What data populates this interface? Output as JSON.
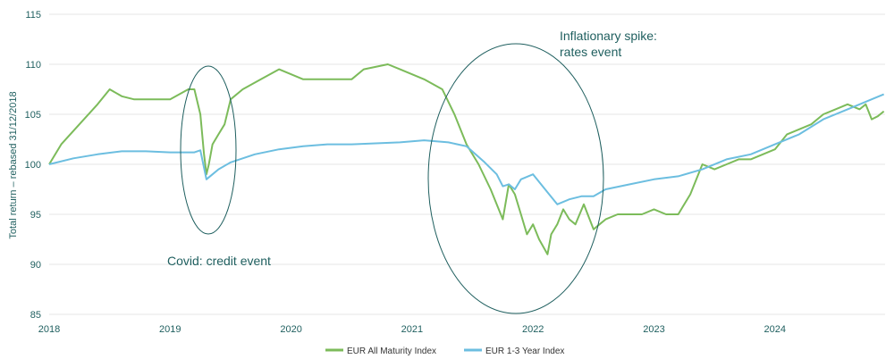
{
  "chart_data": {
    "type": "line",
    "title": "",
    "ylabel": "Total return – rebased 31/12/2018",
    "xlabel": "",
    "ylim": [
      85,
      115
    ],
    "y_ticks": [
      "85",
      "90",
      "95",
      "100",
      "105",
      "110",
      "115"
    ],
    "x_ticks": [
      "2018",
      "2019",
      "2020",
      "2021",
      "2022",
      "2023",
      "2024"
    ],
    "grid": "horizontal",
    "legend": "bottom",
    "annotations": [
      {
        "text_lines": [
          "Covid: credit event"
        ]
      },
      {
        "text_lines": [
          "Inflationary spike:",
          "rates event"
        ]
      }
    ],
    "series": [
      {
        "name": "EUR All Maturity Index",
        "color": "#7cbb5a",
        "x": [
          2018.0,
          2018.1,
          2018.25,
          2018.4,
          2018.5,
          2018.6,
          2018.7,
          2018.8,
          2019.0,
          2019.15,
          2019.2,
          2019.25,
          2019.28,
          2019.3,
          2019.32,
          2019.35,
          2019.4,
          2019.45,
          2019.5,
          2019.6,
          2019.75,
          2019.9,
          2020.1,
          2020.3,
          2020.5,
          2020.6,
          2020.8,
          2020.9,
          2021.1,
          2021.25,
          2021.35,
          2021.45,
          2021.55,
          2021.65,
          2021.75,
          2021.8,
          2021.85,
          2021.9,
          2021.95,
          2022.0,
          2022.05,
          2022.12,
          2022.15,
          2022.2,
          2022.25,
          2022.3,
          2022.35,
          2022.42,
          2022.5,
          2022.55,
          2022.6,
          2022.7,
          2022.8,
          2022.9,
          2023.0,
          2023.1,
          2023.2,
          2023.3,
          2023.4,
          2023.5,
          2023.6,
          2023.7,
          2023.8,
          2023.9,
          2024.0,
          2024.1,
          2024.2,
          2024.3,
          2024.4,
          2024.5,
          2024.6,
          2024.7,
          2024.75,
          2024.8,
          2024.85,
          2024.9
        ],
        "values": [
          100.0,
          102.0,
          104.0,
          106.0,
          107.5,
          106.8,
          106.5,
          106.5,
          106.5,
          107.5,
          107.5,
          105.0,
          101.0,
          99.0,
          100.0,
          102.0,
          103.0,
          104.0,
          106.5,
          107.5,
          108.5,
          109.5,
          108.5,
          108.5,
          108.5,
          109.5,
          110.0,
          109.5,
          108.5,
          107.5,
          105.0,
          102.0,
          100.0,
          97.5,
          94.5,
          98.0,
          97.0,
          95.0,
          93.0,
          94.0,
          92.5,
          91.0,
          93.0,
          94.0,
          95.5,
          94.5,
          94.0,
          96.0,
          93.5,
          94.0,
          94.5,
          95.0,
          95.0,
          95.0,
          95.5,
          95.0,
          95.0,
          97.0,
          100.0,
          99.5,
          100.0,
          100.5,
          100.5,
          101.0,
          101.5,
          103.0,
          103.5,
          104.0,
          105.0,
          105.5,
          106.0,
          105.5,
          106.0,
          104.5,
          104.8,
          105.3
        ]
      },
      {
        "name": "EUR 1-3 Year Index",
        "color": "#6cbee0",
        "x": [
          2018.0,
          2018.2,
          2018.4,
          2018.6,
          2018.8,
          2019.0,
          2019.2,
          2019.25,
          2019.3,
          2019.35,
          2019.4,
          2019.5,
          2019.7,
          2019.9,
          2020.1,
          2020.3,
          2020.5,
          2020.7,
          2020.9,
          2021.1,
          2021.3,
          2021.45,
          2021.6,
          2021.7,
          2021.75,
          2021.8,
          2021.85,
          2021.9,
          2022.0,
          2022.1,
          2022.2,
          2022.3,
          2022.4,
          2022.5,
          2022.6,
          2022.8,
          2023.0,
          2023.2,
          2023.4,
          2023.6,
          2023.8,
          2024.0,
          2024.2,
          2024.4,
          2024.6,
          2024.8,
          2024.9
        ],
        "values": [
          100.0,
          100.6,
          101.0,
          101.3,
          101.3,
          101.2,
          101.2,
          101.4,
          98.5,
          99.0,
          99.5,
          100.2,
          101.0,
          101.5,
          101.8,
          102.0,
          102.0,
          102.1,
          102.2,
          102.4,
          102.2,
          101.8,
          100.2,
          99.0,
          97.8,
          98.0,
          97.5,
          98.5,
          99.0,
          97.5,
          96.0,
          96.5,
          96.8,
          96.8,
          97.5,
          98.0,
          98.5,
          98.8,
          99.5,
          100.5,
          101.0,
          102.0,
          103.0,
          104.5,
          105.5,
          106.5,
          107.0
        ]
      }
    ]
  }
}
